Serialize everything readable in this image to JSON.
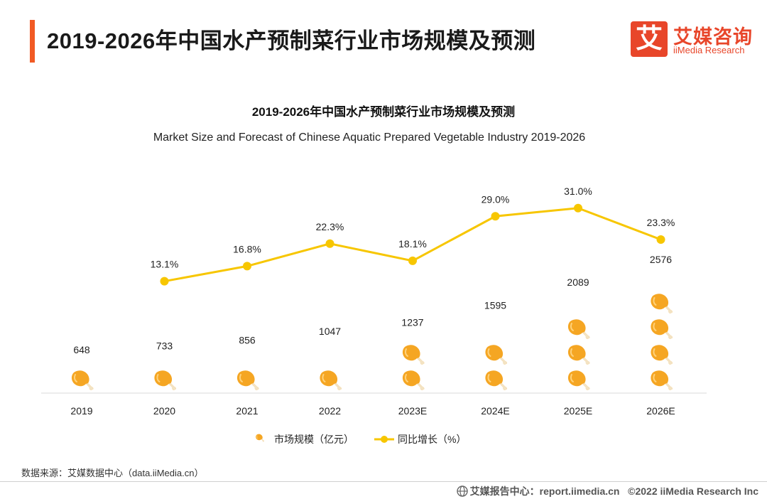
{
  "header": {
    "title": "2019-2026年中国水产预制菜行业市场规模及预测"
  },
  "logo": {
    "mark": "艾",
    "name_cn": "艾媒咨询",
    "name_en": "iiMedia Research"
  },
  "colors": {
    "accent": "#f15a24",
    "brand": "#e8462a",
    "line": "#f7c600",
    "drumstick": "#f5a623"
  },
  "chart_data": {
    "type": "bar",
    "title": "2019-2026年中国水产预制菜行业市场规模及预测",
    "subtitle": "Market Size and Forecast of Chinese Aquatic Prepared Vegetable Industry 2019-2026",
    "categories": [
      "2019",
      "2020",
      "2021",
      "2022",
      "2023E",
      "2024E",
      "2025E",
      "2026E"
    ],
    "series": [
      {
        "name": "市场规模（亿元）",
        "type": "pictorial-bar",
        "values": [
          648,
          733,
          856,
          1047,
          1237,
          1595,
          2089,
          2576
        ],
        "labels": [
          "648",
          "733",
          "856",
          "1047",
          "1237",
          "1595",
          "2089",
          "2576"
        ]
      },
      {
        "name": "同比增长（%）",
        "type": "line",
        "values": [
          null,
          13.1,
          16.8,
          22.3,
          18.1,
          29.0,
          31.0,
          23.3
        ],
        "labels": [
          "",
          "13.1%",
          "16.8%",
          "22.3%",
          "18.1%",
          "29.0%",
          "31.0%",
          "23.3%"
        ]
      }
    ],
    "legend": [
      "市场规模（亿元）",
      "同比增长（%）"
    ],
    "legend_position": "bottom",
    "bar_ylim": [
      0,
      2700
    ],
    "line_ylim": [
      -40,
      40
    ],
    "grid": false
  },
  "footer": {
    "source": "数据来源：艾媒数据中心（data.iiMedia.cn）",
    "report": "艾媒报告中心：report.iimedia.cn",
    "copyright": "©2022  iiMedia Research  Inc"
  }
}
